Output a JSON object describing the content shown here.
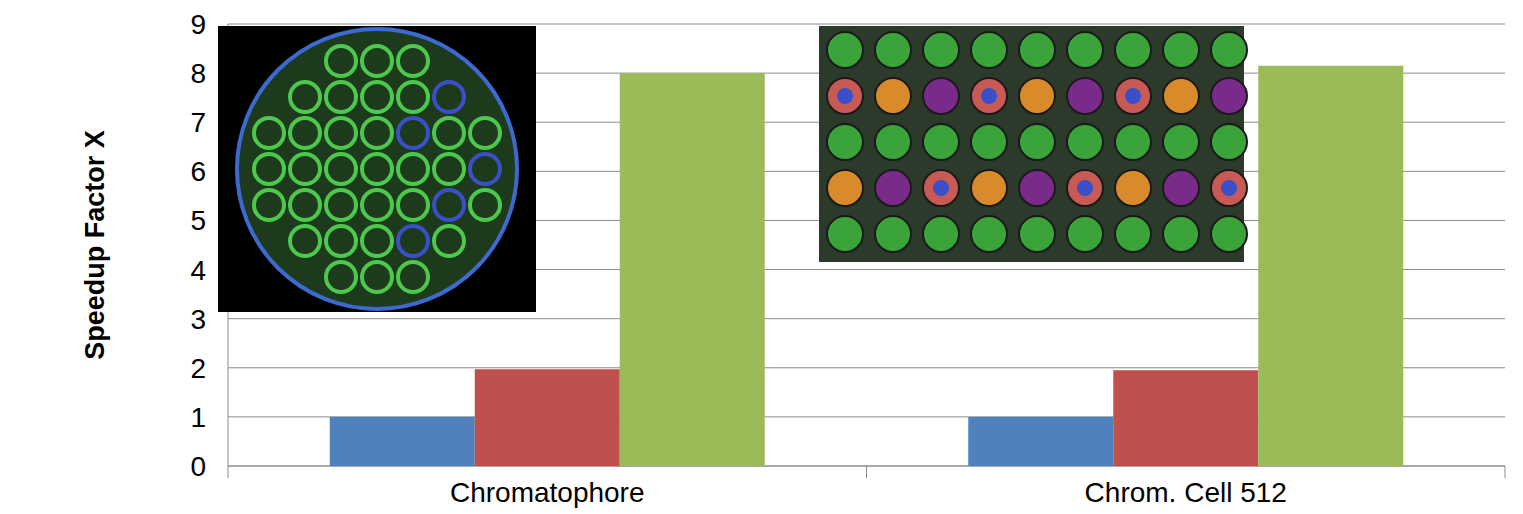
{
  "chart_data": {
    "type": "bar",
    "y_label": "Speedup Factor X",
    "categories": [
      "Chromatophore",
      "Chrom. Cell 512"
    ],
    "series": [
      {
        "color": "#4f81bd",
        "values": [
          1,
          1
        ]
      },
      {
        "color": "#c0504d",
        "values": [
          1.97,
          1.95
        ]
      },
      {
        "color": "#9bbb59",
        "values": [
          8.0,
          8.15
        ]
      }
    ],
    "ylim": [
      0,
      9
    ],
    "yticks": [
      0,
      1,
      2,
      3,
      4,
      5,
      6,
      7,
      8,
      9
    ],
    "grid": true
  }
}
